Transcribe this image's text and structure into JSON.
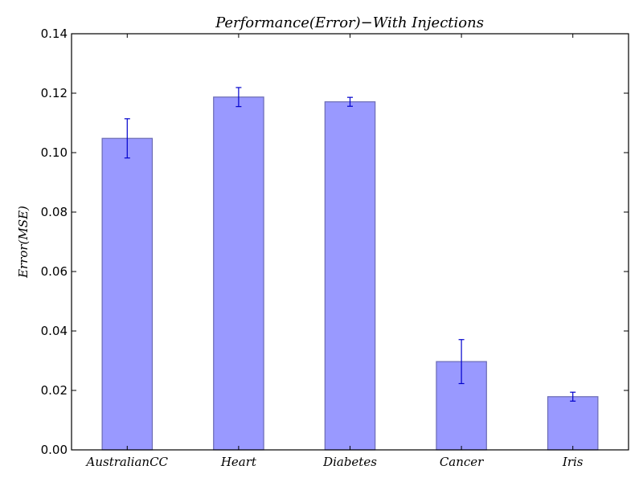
{
  "chart_data": {
    "type": "bar",
    "title": "Performance(Error)−With Injections",
    "xlabel": "",
    "ylabel": "Error(MSE)",
    "categories": [
      "AustralianCC",
      "Heart",
      "Diabetes",
      "Cancer",
      "Iris"
    ],
    "values": [
      0.1048,
      0.1187,
      0.1171,
      0.0297,
      0.0179
    ],
    "errors": [
      0.0066,
      0.0032,
      0.0015,
      0.0074,
      0.0015
    ],
    "ylim": [
      0,
      0.14
    ],
    "yticks": [
      "0.00",
      "0.02",
      "0.04",
      "0.06",
      "0.08",
      "0.10",
      "0.12",
      "0.14"
    ],
    "grid": false,
    "colors": {
      "bar_fill": "#9999ff",
      "bar_edge": "#6b6bb3",
      "error_bar": "#0000cc",
      "axis": "#000000"
    }
  }
}
